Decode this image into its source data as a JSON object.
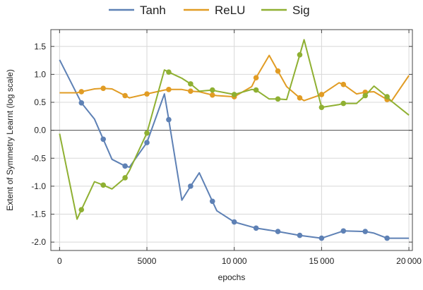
{
  "chart_data": {
    "type": "line",
    "xlabel": "epochs",
    "ylabel": "Extent of Symmetry Learnt (log scale)",
    "xlim": [
      -500,
      20200
    ],
    "ylim": [
      -2.15,
      1.8
    ],
    "x_ticks": [
      0,
      5000,
      10000,
      15000,
      20000
    ],
    "x_tick_labels": [
      "0",
      "5000",
      "10 000",
      "15 000",
      "20 000"
    ],
    "y_ticks": [
      -2.0,
      -1.5,
      -1.0,
      -0.5,
      0.0,
      0.5,
      1.0,
      1.5
    ],
    "y_tick_labels": [
      "-2.0",
      "-1.5",
      "-1.0",
      "-0.5",
      "0.0",
      "0.5",
      "1.0",
      "1.5"
    ],
    "grid": true,
    "legend_position": "top",
    "series": [
      {
        "name": "Tanh",
        "color": "#5e81b5",
        "x": [
          0,
          1250,
          2000,
          2500,
          3000,
          3750,
          4000,
          5000,
          6000,
          6250,
          7000,
          7500,
          8000,
          8750,
          9000,
          10000,
          11250,
          12500,
          13750,
          15000,
          16250,
          17500,
          18000,
          18750,
          20000
        ],
        "y": [
          1.26,
          0.49,
          0.2,
          -0.16,
          -0.52,
          -0.64,
          -0.66,
          -0.22,
          0.65,
          0.19,
          -1.25,
          -1.0,
          -0.76,
          -1.27,
          -1.44,
          -1.64,
          -1.75,
          -1.81,
          -1.88,
          -1.93,
          -1.8,
          -1.81,
          -1.84,
          -1.93,
          -1.93
        ],
        "markers": [
          [
            1250,
            0.49
          ],
          [
            2500,
            -0.16
          ],
          [
            3750,
            -0.64
          ],
          [
            5000,
            -0.22
          ],
          [
            6250,
            0.19
          ],
          [
            7500,
            -1.0
          ],
          [
            8750,
            -1.27
          ],
          [
            10000,
            -1.64
          ],
          [
            11250,
            -1.75
          ],
          [
            12500,
            -1.81
          ],
          [
            13750,
            -1.88
          ],
          [
            15000,
            -1.93
          ],
          [
            16250,
            -1.8
          ],
          [
            17500,
            -1.81
          ],
          [
            18750,
            -1.93
          ]
        ]
      },
      {
        "name": "ReLU",
        "color": "#e19c24",
        "x": [
          0,
          1000,
          1250,
          2000,
          2500,
          3000,
          3750,
          4000,
          5000,
          6000,
          6250,
          7000,
          7500,
          8000,
          8750,
          9000,
          10000,
          11000,
          11250,
          12000,
          12500,
          13000,
          13750,
          14000,
          15000,
          16000,
          16250,
          17000,
          17500,
          18000,
          18750,
          19000,
          20000
        ],
        "y": [
          0.67,
          0.67,
          0.69,
          0.74,
          0.75,
          0.74,
          0.62,
          0.58,
          0.65,
          0.72,
          0.73,
          0.73,
          0.7,
          0.69,
          0.63,
          0.62,
          0.6,
          0.78,
          0.94,
          1.34,
          1.06,
          0.78,
          0.58,
          0.53,
          0.64,
          0.85,
          0.82,
          0.65,
          0.68,
          0.69,
          0.55,
          0.52,
          0.98
        ],
        "markers": [
          [
            1250,
            0.69
          ],
          [
            2500,
            0.75
          ],
          [
            3750,
            0.62
          ],
          [
            5000,
            0.65
          ],
          [
            6250,
            0.73
          ],
          [
            7500,
            0.7
          ],
          [
            8750,
            0.63
          ],
          [
            10000,
            0.6
          ],
          [
            11250,
            0.94
          ],
          [
            12500,
            1.06
          ],
          [
            13750,
            0.58
          ],
          [
            15000,
            0.64
          ],
          [
            16250,
            0.82
          ],
          [
            17500,
            0.68
          ],
          [
            18750,
            0.55
          ]
        ]
      },
      {
        "name": "Sig",
        "color": "#8fb032",
        "x": [
          0,
          1000,
          1250,
          2000,
          2500,
          3000,
          3750,
          4000,
          5000,
          6000,
          6250,
          7000,
          7500,
          8000,
          8750,
          9000,
          10000,
          11000,
          11250,
          12000,
          12500,
          13000,
          13750,
          14000,
          15000,
          16000,
          16250,
          17000,
          17500,
          18000,
          18750,
          19000,
          20000
        ],
        "y": [
          -0.06,
          -1.59,
          -1.42,
          -0.92,
          -0.98,
          -1.05,
          -0.85,
          -0.72,
          -0.05,
          1.08,
          1.04,
          0.93,
          0.83,
          0.7,
          0.72,
          0.7,
          0.64,
          0.73,
          0.72,
          0.56,
          0.56,
          0.55,
          1.35,
          1.62,
          0.41,
          0.46,
          0.48,
          0.48,
          0.62,
          0.79,
          0.6,
          0.52,
          0.27
        ],
        "markers": [
          [
            1250,
            -1.42
          ],
          [
            2500,
            -0.98
          ],
          [
            3750,
            -0.85
          ],
          [
            5000,
            -0.05
          ],
          [
            6250,
            1.04
          ],
          [
            7500,
            0.83
          ],
          [
            8750,
            0.72
          ],
          [
            10000,
            0.64
          ],
          [
            11250,
            0.72
          ],
          [
            12500,
            0.56
          ],
          [
            13750,
            1.35
          ],
          [
            15000,
            0.41
          ],
          [
            16250,
            0.48
          ],
          [
            17500,
            0.62
          ],
          [
            18750,
            0.6
          ]
        ]
      }
    ]
  }
}
